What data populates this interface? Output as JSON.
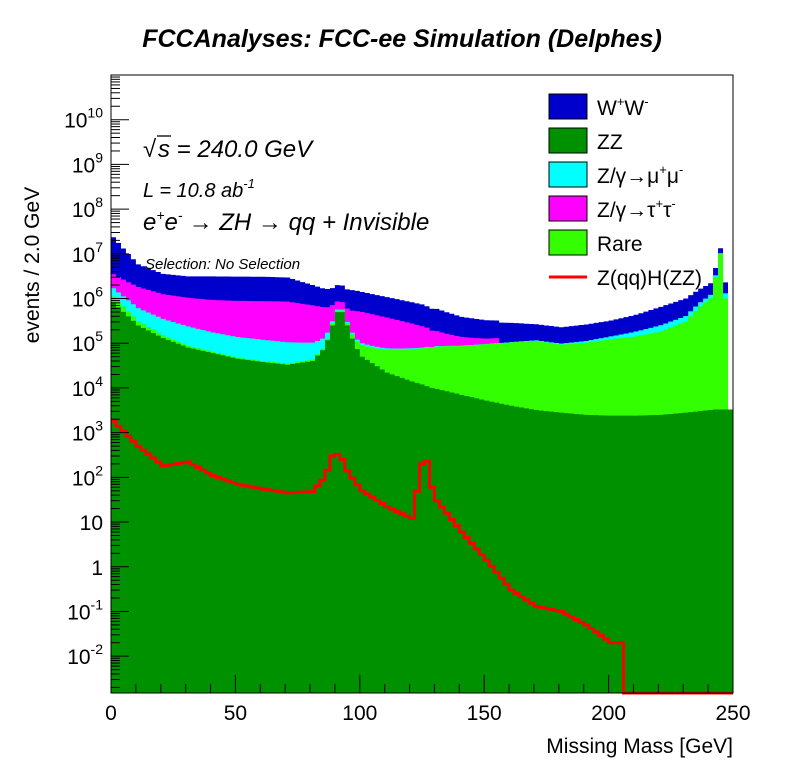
{
  "chart_data": {
    "type": "area",
    "title": "FCCAnalyses: FCC-ee Simulation (Delphes)",
    "xlabel": "Missing Mass [GeV]",
    "ylabel": "events / 2.0 GeV",
    "xlim": [
      0,
      250
    ],
    "ylim": [
      0.0015,
      100000000000
    ],
    "log_y": true,
    "grid": false,
    "legend_position": "top-right",
    "x_ticks": [
      "0",
      "50",
      "100",
      "150",
      "200",
      "250"
    ],
    "y_ticks": [
      "10^-2",
      "10^-1",
      "1",
      "10",
      "10^2",
      "10^3",
      "10^4",
      "10^5",
      "10^6",
      "10^7",
      "10^8",
      "10^9",
      "10^10"
    ],
    "annotations": {
      "sqrt_s": "s = 240.0 GeV",
      "lumi": "L = 10.8 ab",
      "lumi_exp": "-1",
      "process": "→ ZH → qq + Invisible",
      "selection": "Selection: No Selection"
    },
    "x": [
      0,
      10,
      20,
      30,
      40,
      50,
      60,
      70,
      80,
      85,
      88,
      91,
      94,
      97,
      100,
      110,
      120,
      124,
      126,
      128,
      130,
      140,
      150,
      160,
      170,
      180,
      190,
      200,
      210,
      220,
      230,
      235,
      240,
      242,
      244,
      246,
      248
    ],
    "series": [
      {
        "name": "ZZ",
        "color": "#009100",
        "values": [
          800000,
          250000,
          130000,
          80000,
          60000,
          45000,
          38000,
          33000,
          40000,
          80000,
          250000,
          700000,
          250000,
          90000,
          50000,
          22000,
          14000,
          12000,
          11000,
          10000,
          9500,
          7000,
          5200,
          4000,
          3200,
          2800,
          2500,
          2400,
          2400,
          2500,
          2800,
          3000,
          3200,
          3300,
          3300,
          3300,
          3300
        ]
      },
      {
        "name": "Rare",
        "color": "#33ff00",
        "values": [
          300000,
          60000,
          20000,
          8000,
          4000,
          2500,
          2000,
          2000,
          3000,
          6000,
          20000,
          50000,
          30000,
          30000,
          40000,
          50000,
          60000,
          65000,
          70000,
          70000,
          75000,
          80000,
          90000,
          100000,
          110000,
          90000,
          100000,
          120000,
          140000,
          180000,
          300000,
          600000,
          1000000,
          3000000,
          10000000,
          1000000,
          0
        ]
      },
      {
        "name": "Z/γ→μ⁺μ⁻",
        "color": "#00ffff",
        "values": [
          600000,
          300000,
          200000,
          150000,
          110000,
          90000,
          80000,
          70000,
          60000,
          50000,
          40000,
          30000,
          20000,
          15000,
          10000,
          5000,
          3000,
          2500,
          2000,
          2000,
          2000,
          1500,
          1500,
          2000,
          3000,
          5000,
          10000,
          20000,
          40000,
          70000,
          100000,
          150000,
          200000,
          300000,
          300000,
          300000,
          0
        ]
      },
      {
        "name": "Z/γ→τ⁺τ⁻",
        "color": "#ff00ff",
        "values": [
          1800000,
          1200000,
          900000,
          800000,
          750000,
          750000,
          750000,
          750000,
          600000,
          500000,
          400000,
          250000,
          300000,
          400000,
          400000,
          300000,
          200000,
          160000,
          140000,
          110000,
          100000,
          50000,
          30000,
          0,
          0,
          0,
          0,
          0,
          0,
          0,
          0,
          0,
          0,
          0,
          0,
          0,
          0
        ]
      },
      {
        "name": "W⁺W⁻",
        "color": "#0000cc",
        "values": [
          20000000,
          4000000,
          2300000,
          2100000,
          2200000,
          2200000,
          2200000,
          2100000,
          1300000,
          1000000,
          1000000,
          1200000,
          1000000,
          1000000,
          900000,
          700000,
          550000,
          500000,
          450000,
          400000,
          400000,
          250000,
          200000,
          180000,
          150000,
          130000,
          150000,
          180000,
          250000,
          400000,
          600000,
          800000,
          1000000,
          1500000,
          3000000,
          1000000,
          0
        ]
      },
      {
        "name": "Z(qq)H(ZZ)",
        "color": "#ff0000",
        "style": "line",
        "values": [
          1800,
          500,
          180,
          220,
          110,
          70,
          55,
          45,
          48,
          100,
          300,
          340,
          140,
          80,
          50,
          22,
          12,
          200,
          230,
          60,
          30,
          6,
          1.4,
          0.3,
          0.13,
          0.1,
          0.05,
          0.02,
          0,
          0,
          0,
          0,
          0,
          0,
          0,
          0,
          0
        ]
      }
    ],
    "legend": [
      {
        "label": "W",
        "sup1": "+",
        "mid": "W",
        "sup2": "-",
        "color": "#0000cc",
        "kind": "box"
      },
      {
        "label": "ZZ",
        "color": "#009100",
        "kind": "box"
      },
      {
        "label": "Z/γ→μ",
        "sup1": "+",
        "mid": "μ",
        "sup2": "-",
        "color": "#00ffff",
        "kind": "box"
      },
      {
        "label": "Z/γ→τ",
        "sup1": "+",
        "mid": "τ",
        "sup2": "-",
        "color": "#ff00ff",
        "kind": "box"
      },
      {
        "label": "Rare",
        "color": "#33ff00",
        "kind": "box"
      },
      {
        "label": "Z(qq)H(ZZ)",
        "color": "#ff0000",
        "kind": "line"
      }
    ]
  }
}
